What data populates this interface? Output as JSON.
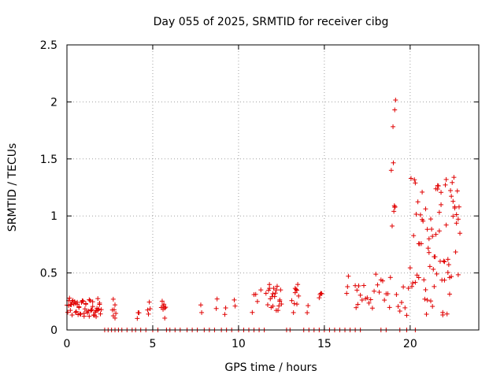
{
  "chart_data": {
    "type": "scatter",
    "title": "Day 055 of 2025, SRMTID for receiver cibg",
    "xlabel": "GPS time / hours",
    "ylabel": "SRMTID / TECUs",
    "xlim": [
      0,
      24
    ],
    "ylim": [
      0,
      2.5
    ],
    "xticks": [
      0,
      5,
      10,
      15,
      20
    ],
    "yticks": [
      0,
      0.5,
      1,
      1.5,
      2,
      2.5
    ],
    "xtick_labels": [
      "0",
      "5",
      "10",
      "15",
      "20"
    ],
    "ytick_labels": [
      "0",
      "0.5",
      "1",
      "1.5",
      "2",
      "2.5"
    ],
    "grid": true,
    "marker": "+",
    "color": "#e00000",
    "series": [
      {
        "name": "SRMTID",
        "x": [
          0.0,
          0.05,
          0.1,
          0.15,
          0.2,
          0.25,
          0.3,
          0.35,
          0.4,
          0.45,
          0.5,
          0.55,
          0.6,
          0.65,
          0.7,
          0.75,
          0.8,
          0.85,
          0.9,
          0.95,
          1.0,
          1.05,
          1.1,
          1.15,
          1.2,
          1.25,
          1.3,
          1.35,
          1.4,
          1.45,
          1.5,
          1.55,
          1.6,
          1.65,
          1.7,
          1.75,
          1.8,
          1.85,
          1.9,
          1.95,
          2.0,
          0.1,
          0.3,
          0.5,
          0.7,
          0.9,
          1.1,
          1.3,
          1.5,
          1.7,
          1.9,
          0.2,
          0.6,
          1.0,
          1.4,
          1.8,
          2.65,
          2.7,
          2.75,
          2.8,
          2.85,
          2.7,
          2.8,
          4.1,
          4.15,
          4.2,
          4.7,
          4.75,
          4.8,
          4.85,
          5.5,
          5.55,
          5.6,
          5.65,
          5.7,
          5.75,
          5.6,
          5.7,
          7.8,
          7.85,
          8.7,
          8.75,
          9.2,
          9.25,
          9.75,
          9.8,
          10.8,
          10.9,
          11.0,
          11.1,
          11.3,
          11.6,
          11.7,
          11.75,
          11.8,
          11.85,
          11.9,
          11.95,
          12.0,
          12.05,
          12.1,
          12.15,
          12.2,
          12.25,
          12.3,
          12.35,
          12.4,
          12.45,
          12.5,
          11.8,
          12.0,
          12.2,
          12.4,
          13.1,
          13.2,
          13.25,
          13.3,
          13.35,
          13.4,
          13.45,
          13.5,
          13.3,
          13.4,
          14.0,
          14.05,
          14.7,
          14.75,
          14.8,
          14.85,
          16.3,
          16.35,
          16.4,
          16.8,
          16.85,
          16.9,
          16.95,
          17.0,
          17.1,
          17.2,
          17.3,
          17.4,
          17.5,
          17.6,
          17.7,
          17.8,
          17.9,
          18.0,
          18.1,
          18.2,
          18.3,
          18.4,
          18.5,
          18.6,
          18.7,
          18.8,
          18.85,
          18.9,
          18.95,
          19.0,
          19.02,
          19.05,
          19.08,
          19.1,
          19.12,
          19.15,
          19.1,
          19.2,
          19.3,
          19.4,
          19.5,
          19.6,
          19.7,
          19.8,
          19.9,
          20.0,
          20.05,
          20.1,
          20.15,
          20.2,
          20.25,
          20.3,
          20.35,
          20.4,
          20.45,
          20.5,
          20.55,
          20.6,
          20.65,
          20.7,
          20.75,
          20.8,
          20.85,
          20.9,
          20.95,
          21.0,
          21.05,
          21.1,
          21.15,
          21.2,
          21.25,
          21.3,
          21.35,
          21.4,
          21.45,
          21.5,
          21.55,
          21.6,
          21.65,
          21.7,
          21.75,
          21.8,
          21.85,
          21.9,
          21.95,
          22.0,
          22.05,
          22.1,
          22.15,
          22.2,
          22.25,
          22.3,
          22.35,
          22.4,
          22.45,
          22.5,
          22.55,
          22.6,
          22.65,
          22.7,
          22.75,
          22.8,
          22.85,
          22.9,
          21.0,
          21.1,
          21.3,
          21.5,
          21.7,
          21.9,
          22.1,
          22.3,
          22.5,
          22.7,
          20.3,
          20.5,
          20.7,
          20.9,
          21.2,
          21.4,
          21.6,
          21.8,
          22.0,
          22.2,
          22.4,
          22.6,
          22.8,
          2.2,
          2.4,
          2.6,
          2.8,
          3.0,
          3.2,
          3.5,
          3.8,
          4.0,
          4.3,
          4.6,
          5.0,
          5.3,
          5.8,
          6.0,
          6.3,
          6.6,
          7.0,
          7.3,
          7.6,
          8.0,
          8.3,
          8.6,
          9.0,
          9.3,
          9.6,
          10.0,
          10.3,
          10.6,
          10.9,
          11.2,
          11.5,
          12.8,
          13.0,
          13.8,
          14.1,
          14.4,
          14.7,
          15.0,
          15.3,
          15.6,
          15.9,
          16.2,
          16.5,
          16.8,
          17.1,
          18.3,
          18.6,
          19.4,
          19.8,
          20.3
        ]
      }
    ]
  }
}
